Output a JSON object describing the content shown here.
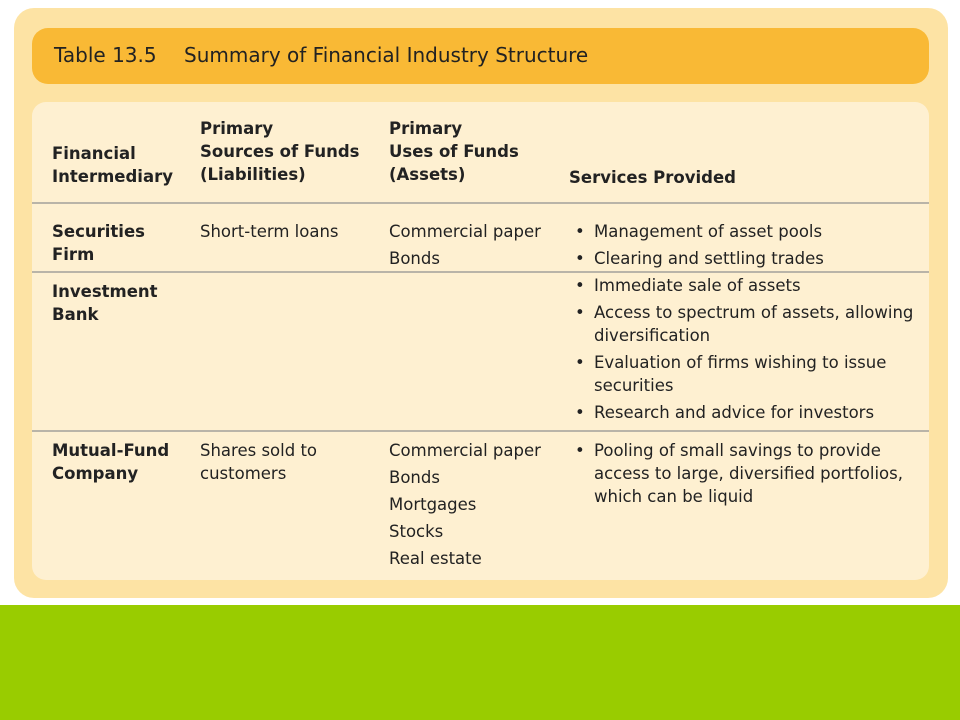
{
  "table": {
    "number": "Table 13.5",
    "title": "Summary of Financial Industry Structure",
    "headers": {
      "intermediary": "Financial\nIntermediary",
      "sources": "Primary\nSources of Funds\n(Liabilities)",
      "uses": "Primary\nUses of Funds\n(Assets)",
      "services": "Services Provided"
    },
    "rows": [
      {
        "intermediary": "Securities\nFirm",
        "sources": "Short-term loans",
        "uses": [
          "Commercial paper",
          "Bonds"
        ],
        "services": [
          "Management of asset pools",
          "Clearing and settling trades"
        ]
      },
      {
        "intermediary": "Investment\nBank",
        "sources": "",
        "uses": [],
        "services": [
          "Immediate sale of assets",
          "Access to spectrum of assets, allowing\ndiversification",
          "Evaluation of firms wishing to issue\nsecurities",
          "Research and advice for investors"
        ]
      },
      {
        "intermediary": "Mutual-Fund\nCompany",
        "sources": "Shares sold to\ncustomers",
        "uses": [
          "Commercial paper",
          "Bonds",
          "Mortgages",
          "Stocks",
          "Real estate"
        ],
        "services": [
          "Pooling of small savings to provide\naccess to large, diversified portfolios,\nwhich can be liquid"
        ]
      }
    ]
  },
  "colors": {
    "panel": "#fde3a4",
    "title_bar": "#f9b935",
    "inner": "#fef0d1",
    "footer_band": "#99cc00"
  }
}
